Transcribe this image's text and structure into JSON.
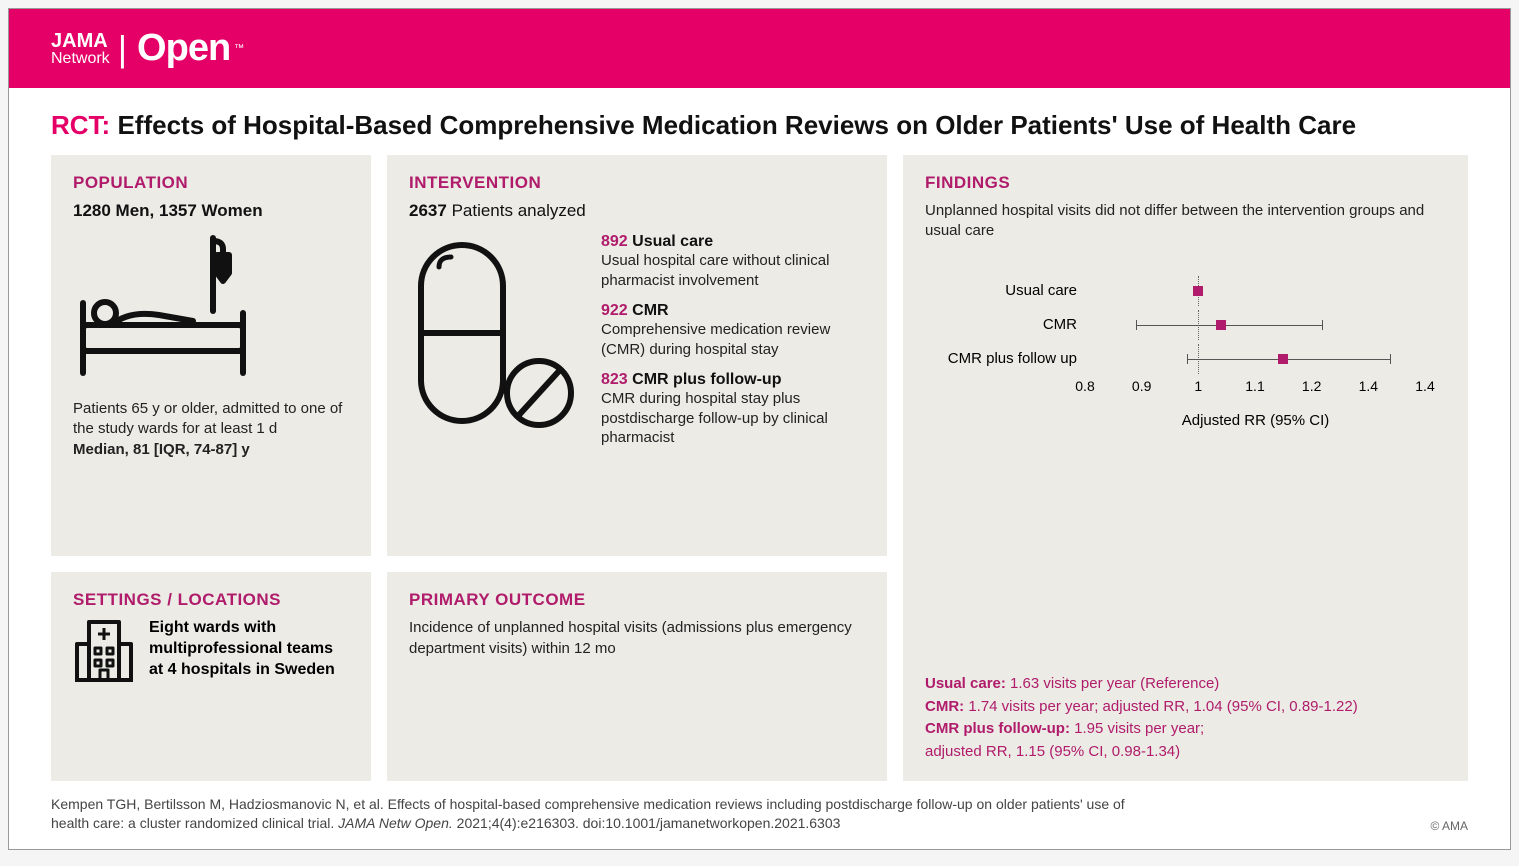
{
  "branding": {
    "network_top": "JAMA",
    "network_bot": "Network",
    "open": "Open",
    "tm": "™",
    "header_bg": "#e40066",
    "accent": "#b01c6b",
    "panel_bg": "#ecebe5"
  },
  "title": {
    "prefix": "RCT:",
    "text": "Effects of Hospital-Based Comprehensive Medication Reviews on Older Patients' Use of Health Care"
  },
  "population": {
    "heading": "POPULATION",
    "subtitle": "1280 Men, 1357 Women",
    "desc": "Patients 65 y or older, admitted to one of the study wards for at least 1 d",
    "median": "Median, 81 [IQR, 74-87] y"
  },
  "intervention": {
    "heading": "INTERVENTION",
    "n_total": "2637",
    "n_label": "Patients analyzed",
    "groups": [
      {
        "n": "892",
        "label": "Usual care",
        "desc": "Usual hospital care without clinical pharmacist involvement"
      },
      {
        "n": "922",
        "label": "CMR",
        "desc": "Comprehensive medication review (CMR) during hospital stay"
      },
      {
        "n": "823",
        "label": "CMR plus follow-up",
        "desc": "CMR during hospital stay plus postdischarge follow-up by clinical pharmacist"
      }
    ]
  },
  "settings": {
    "heading": "SETTINGS / LOCATIONS",
    "text": "Eight wards with multiprofessional teams at 4 hospitals in Sweden"
  },
  "outcome": {
    "heading": "PRIMARY OUTCOME",
    "text": "Incidence of unplanned hospital visits (admissions plus emergency department visits) within 12 mo"
  },
  "findings": {
    "heading": "FINDINGS",
    "summary": "Unplanned hospital visits did not differ between the intervention groups and usual care",
    "forest": {
      "type": "forest",
      "xlim": [
        0.8,
        1.4
      ],
      "ticks": [
        0.8,
        0.9,
        1,
        1.1,
        1.2,
        1.4,
        1.4
      ],
      "ref_line": 1.0,
      "xlabel": "Adjusted RR (95% CI)",
      "rows": [
        {
          "label": "Usual care",
          "point": 1.0,
          "ci": null
        },
        {
          "label": "CMR",
          "point": 1.04,
          "ci": [
            0.89,
            1.22
          ]
        },
        {
          "label": "CMR plus follow up",
          "point": 1.15,
          "ci": [
            0.98,
            1.34
          ]
        }
      ],
      "point_color": "#b01c6b",
      "line_color": "#555555"
    },
    "results": [
      {
        "label": "Usual care:",
        "text": " 1.63 visits per year (Reference)"
      },
      {
        "label": "CMR:",
        "text": " 1.74 visits per year; adjusted RR, 1.04 (95% CI, 0.89-1.22)"
      },
      {
        "label": "CMR plus follow-up:",
        "text": " 1.95 visits per year;"
      }
    ],
    "results_extra": "adjusted RR, 1.15 (95% CI, 0.98-1.34)"
  },
  "citation": {
    "text": "Kempen TGH, Bertilsson M, Hadziosmanovic N, et al. Effects of hospital-based comprehensive medication reviews including postdischarge follow-up on older patients' use of health care: a cluster randomized clinical trial. ",
    "journal": "JAMA Netw Open.",
    "tail": " 2021;4(4):e216303. doi:10.1001/jamanetworkopen.2021.6303",
    "copyright": "© AMA"
  }
}
